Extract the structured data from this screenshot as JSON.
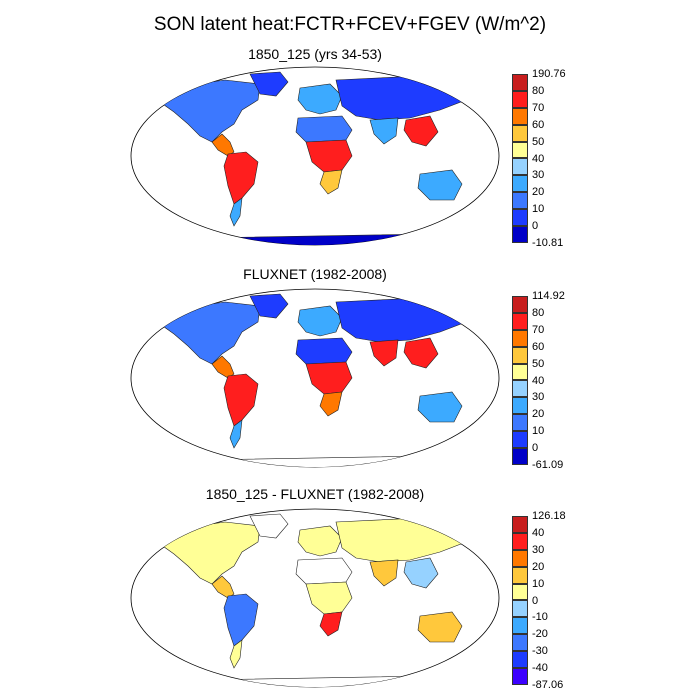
{
  "figure": {
    "title": "SON latent heat:FCTR+FCEV+FGEV (W/m^2)"
  },
  "panels": [
    {
      "title": "1850_125 (yrs 34-53)",
      "colorbar": {
        "labels": [
          "190.76",
          "80",
          "70",
          "60",
          "50",
          "40",
          "30",
          "20",
          "10",
          "0",
          "-10.81"
        ],
        "colors": [
          "#c81e1e",
          "#ff1e1e",
          "#ff7800",
          "#ffc83c",
          "#ffff96",
          "#96d2ff",
          "#3caaff",
          "#3c78ff",
          "#1e3cff",
          "#0000c8"
        ]
      }
    },
    {
      "title": "FLUXNET (1982-2008)",
      "colorbar": {
        "labels": [
          "114.92",
          "80",
          "70",
          "60",
          "50",
          "40",
          "30",
          "20",
          "10",
          "0",
          "-61.09"
        ],
        "colors": [
          "#c81e1e",
          "#ff1e1e",
          "#ff7800",
          "#ffc83c",
          "#ffff96",
          "#96d2ff",
          "#3caaff",
          "#3c78ff",
          "#1e3cff",
          "#0000c8"
        ]
      }
    },
    {
      "title": "1850_125 - FLUXNET (1982-2008)",
      "colorbar": {
        "labels": [
          "126.18",
          "40",
          "30",
          "20",
          "10",
          "0",
          "-10",
          "-20",
          "-30",
          "-40",
          "-87.06"
        ],
        "colors": [
          "#c81e1e",
          "#ff1e1e",
          "#ff7800",
          "#ffc83c",
          "#ffff96",
          "#96d2ff",
          "#3caaff",
          "#3c78ff",
          "#1e3cff",
          "#3c00ff"
        ]
      }
    }
  ],
  "region_colors": {
    "panel1": {
      "north_america": "#3c78ff",
      "greenland": "#1e3cff",
      "central_america": "#ff7800",
      "south_america": "#ff1e1e",
      "patagonia": "#3caaff",
      "europe": "#3caaff",
      "sahara": "#3c78ff",
      "central_africa": "#ff1e1e",
      "south_africa": "#ffc83c",
      "asia": "#1e3cff",
      "south_asia": "#3caaff",
      "southeast_asia": "#ff1e1e",
      "australia": "#3caaff",
      "antarctica": "#0000c8"
    },
    "panel2": {
      "north_america": "#3c78ff",
      "greenland": "#1e3cff",
      "central_america": "#ff7800",
      "south_america": "#ff1e1e",
      "patagonia": "#3caaff",
      "europe": "#3caaff",
      "sahara": "#1e3cff",
      "central_africa": "#ff1e1e",
      "south_africa": "#ff7800",
      "asia": "#1e3cff",
      "south_asia": "#ff1e1e",
      "southeast_asia": "#ff1e1e",
      "australia": "#3caaff",
      "antarctica": "#ffffff"
    },
    "panel3": {
      "north_america": "#ffff96",
      "greenland": "#ffffff",
      "central_america": "#ffc83c",
      "south_america": "#3c78ff",
      "patagonia": "#ffff96",
      "europe": "#ffff96",
      "sahara": "#ffffff",
      "central_africa": "#ffff96",
      "south_africa": "#ff1e1e",
      "asia": "#ffff96",
      "south_asia": "#ffc83c",
      "southeast_asia": "#96d2ff",
      "australia": "#ffc83c",
      "antarctica": "#ffffff"
    }
  }
}
